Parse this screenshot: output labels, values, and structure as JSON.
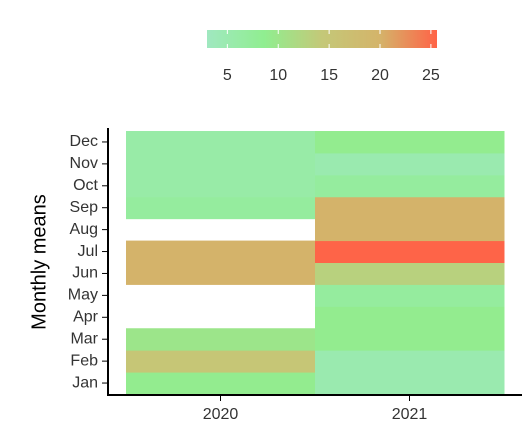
{
  "chart_data": {
    "type": "heatmap",
    "y_label": "Monthly means",
    "columns": [
      "2020",
      "2021"
    ],
    "categories": [
      "Jan",
      "Feb",
      "Mar",
      "Apr",
      "May",
      "Jun",
      "Jul",
      "Aug",
      "Sep",
      "Oct",
      "Nov",
      "Dec"
    ],
    "values": [
      [
        9,
        15,
        10,
        null,
        null,
        20,
        20,
        null,
        7,
        6,
        6,
        6
      ],
      [
        5,
        5,
        9,
        9,
        7,
        13,
        25.5,
        20,
        20,
        7,
        5,
        9
      ]
    ],
    "colorscale": {
      "lim": [
        3,
        25.6
      ],
      "ticks": [
        5,
        10,
        15,
        20,
        25
      ],
      "colors": [
        "#a0e8c0",
        "#90ee90",
        "#c4c878",
        "#d4b46a",
        "#ff6347"
      ]
    }
  }
}
